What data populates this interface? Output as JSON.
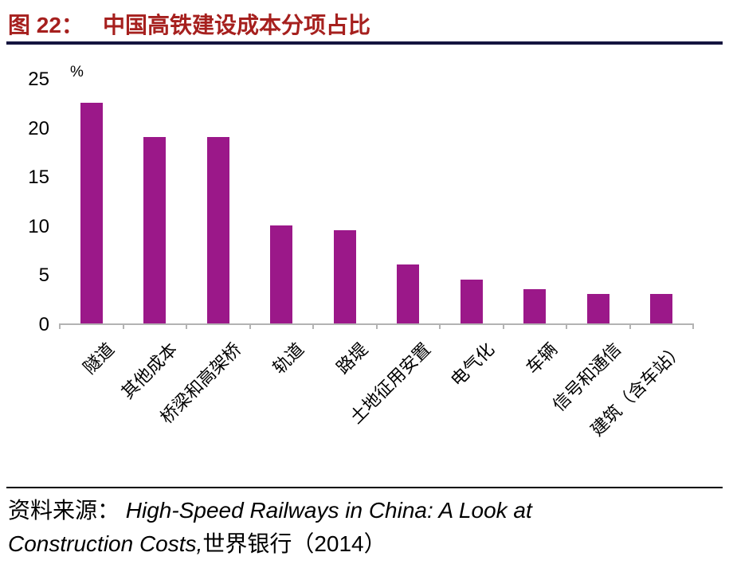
{
  "header": {
    "figure_label": "图 22：",
    "title": "中国高铁建设成本分项占比"
  },
  "chart_data": {
    "type": "bar",
    "title": "中国高铁建设成本分项占比",
    "ylabel": "%",
    "xlabel": "",
    "ylim": [
      0,
      25
    ],
    "yticks": [
      0,
      5,
      10,
      15,
      20,
      25
    ],
    "grid": false,
    "legend": "none",
    "bar_color": "#9b1889",
    "categories": [
      "隧道",
      "其他成本",
      "桥梁和高架桥",
      "轨道",
      "路堤",
      "土地征用安置",
      "电气化",
      "车辆",
      "信号和通信",
      "建筑（含车站）"
    ],
    "values": [
      22.5,
      19,
      19,
      10,
      9.5,
      6,
      4.5,
      3.5,
      3,
      3
    ]
  },
  "footer": {
    "source_label": "资料来源：",
    "source_title_part1": "High-Speed Railways in China: A Look at",
    "source_title_part2": "Construction Costs,",
    "source_publisher": "世界银行（2014）"
  },
  "colors": {
    "title_red": "#a6201e",
    "bar_magenta": "#9b1889",
    "divider_dark": "#15153f",
    "axis_gray": "#b3b3b3"
  }
}
